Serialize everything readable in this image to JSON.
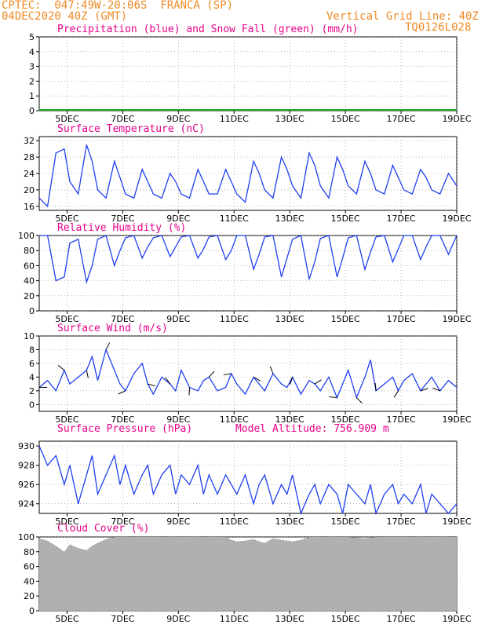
{
  "header": {
    "line1_left": "CPTEC:  047:49W-20:06S  FRANCA (SP)",
    "line2_left": "04DEC2020 40Z (GMT)",
    "line2_right": "Vertical Grid Line: 40Z",
    "line3_right": "TQ0126L028"
  },
  "colors": {
    "series": "#1f3ff0",
    "snow": "#22aa22",
    "title": "#e8008a",
    "header": "#f08a24",
    "cloud": "#b0b0b0",
    "grid": "#888888"
  },
  "x_ticks": [
    "5DEC",
    "7DEC",
    "9DEC",
    "11DEC",
    "13DEC",
    "15DEC",
    "17DEC",
    "19DEC"
  ],
  "chart_data": [
    {
      "type": "bar",
      "title": "Precipitation (blue) and Snow Fall (green) (mm/h)",
      "ylim": [
        0,
        5
      ],
      "yticks": [
        "0",
        "1",
        "2",
        "3",
        "4",
        "5"
      ],
      "series": [
        {
          "name": "Precipitation",
          "values": [
            0,
            0,
            0,
            0,
            0,
            0,
            0,
            0,
            0,
            0,
            0,
            0,
            0,
            0,
            0,
            0,
            0,
            0,
            0,
            0,
            0,
            0,
            0,
            0,
            0,
            0,
            0,
            0,
            0,
            0,
            0,
            0,
            0,
            0,
            0,
            0,
            0,
            0,
            0,
            0,
            0,
            0,
            0,
            0,
            0,
            0,
            0,
            0,
            0,
            0,
            0,
            0,
            0,
            0,
            0,
            0,
            0,
            0,
            0,
            0,
            0,
            0,
            0,
            0,
            0,
            0,
            0,
            0,
            0,
            0,
            0,
            0,
            0,
            0,
            0,
            0,
            0,
            0,
            0,
            0,
            0,
            0,
            0,
            0,
            0,
            0,
            0,
            0,
            0,
            0,
            0,
            0,
            0,
            0,
            0,
            0,
            0,
            0,
            0,
            0,
            0,
            0,
            0,
            0,
            0,
            0,
            0,
            0,
            0,
            0,
            0,
            0,
            0,
            0,
            0,
            0,
            0,
            0,
            0,
            0,
            0,
            0,
            0,
            0,
            0,
            0,
            0,
            0,
            0,
            0,
            0,
            0,
            0,
            0,
            0,
            0,
            0,
            0,
            0,
            0,
            0,
            0,
            0,
            0,
            0,
            0,
            0,
            0,
            0,
            0,
            0,
            0,
            0,
            0,
            0,
            0,
            0,
            0,
            0,
            0,
            0,
            0,
            0,
            0,
            0,
            0,
            0,
            0,
            0,
            0,
            0,
            0,
            0,
            0,
            0,
            0,
            0,
            0,
            0,
            0,
            0,
            0,
            0,
            0,
            0,
            0,
            0,
            0,
            0,
            0,
            0,
            0,
            0,
            0,
            0,
            0,
            0,
            0,
            0,
            0,
            0,
            0,
            0,
            0,
            0,
            0,
            0,
            0,
            0,
            0,
            0,
            0,
            0,
            0,
            0,
            0,
            0,
            0,
            0,
            0,
            0,
            0,
            0,
            0,
            0,
            0,
            0,
            0,
            0,
            0,
            0,
            0,
            0,
            0,
            0,
            0,
            0,
            0,
            0,
            0,
            0,
            0,
            0,
            0,
            0,
            0,
            0,
            0,
            0,
            0,
            0,
            0,
            0,
            0,
            0,
            0,
            0,
            0,
            0,
            0,
            0,
            0,
            0,
            0,
            0,
            0,
            0,
            0,
            0,
            0,
            0,
            0,
            0,
            0,
            0,
            0,
            0,
            0,
            0,
            0,
            0,
            0,
            0,
            0,
            0,
            0,
            0,
            0,
            0,
            0,
            0,
            0,
            0,
            0,
            0,
            0,
            0,
            0,
            0,
            0,
            0,
            0,
            0,
            0,
            0,
            0,
            0,
            0,
            0,
            0,
            0,
            0,
            0,
            0,
            0,
            0,
            0,
            0,
            0,
            0,
            0,
            0,
            0,
            0,
            0,
            0,
            0,
            0,
            0,
            0,
            0,
            0,
            0,
            0,
            0,
            0,
            0,
            0,
            0,
            0,
            0,
            0,
            0,
            0,
            0,
            0,
            0,
            0,
            0,
            0,
            0,
            0,
            0,
            0,
            0,
            0,
            0,
            0,
            0,
            0,
            0,
            0,
            0,
            0,
            0,
            0,
            0,
            0,
            0,
            0,
            0,
            0,
            0,
            0,
            0,
            0
          ]
        },
        {
          "name": "Snow Fall",
          "values": []
        }
      ]
    },
    {
      "type": "line",
      "title": "Surface Temperature (nC)",
      "ylim": [
        15,
        33
      ],
      "yticks": [
        "16",
        "20",
        "24",
        "28",
        "32"
      ],
      "series": [
        {
          "name": "Temperature",
          "x": [
            4.0,
            4.3,
            4.6,
            4.9,
            5.1,
            5.4,
            5.7,
            5.9,
            6.1,
            6.4,
            6.7,
            6.9,
            7.1,
            7.4,
            7.7,
            7.9,
            8.1,
            8.4,
            8.7,
            8.9,
            9.1,
            9.4,
            9.7,
            9.9,
            10.1,
            10.4,
            10.7,
            10.9,
            11.1,
            11.4,
            11.7,
            11.9,
            12.1,
            12.4,
            12.7,
            12.9,
            13.1,
            13.4,
            13.7,
            13.9,
            14.1,
            14.4,
            14.7,
            14.9,
            15.1,
            15.4,
            15.7,
            15.9,
            16.1,
            16.4,
            16.7,
            16.9,
            17.1,
            17.4,
            17.7,
            17.9,
            18.1,
            18.4,
            18.7,
            19.0
          ],
          "y": [
            18,
            16,
            29,
            30,
            22,
            19,
            31,
            27,
            20,
            18,
            27,
            23,
            19,
            18,
            25,
            22,
            19,
            18,
            24,
            22,
            19,
            18,
            25,
            22,
            19,
            19,
            25,
            22,
            19,
            17,
            27,
            24,
            20,
            18,
            28,
            25,
            21,
            18,
            29,
            26,
            21,
            18,
            28,
            25,
            21,
            19,
            27,
            24,
            20,
            19,
            26,
            23,
            20,
            19,
            25,
            23,
            20,
            19,
            24,
            21
          ]
        }
      ]
    },
    {
      "type": "line",
      "title": "Relative Humidity (%)",
      "ylim": [
        0,
        100
      ],
      "yticks": [
        "0",
        "20",
        "40",
        "60",
        "80",
        "100"
      ],
      "series": [
        {
          "name": "Relative Humidity",
          "x": [
            4.0,
            4.3,
            4.6,
            4.9,
            5.1,
            5.4,
            5.7,
            5.9,
            6.1,
            6.4,
            6.7,
            6.9,
            7.1,
            7.4,
            7.7,
            7.9,
            8.1,
            8.4,
            8.7,
            8.9,
            9.1,
            9.4,
            9.7,
            9.9,
            10.1,
            10.4,
            10.7,
            10.9,
            11.1,
            11.4,
            11.7,
            11.9,
            12.1,
            12.4,
            12.7,
            12.9,
            13.1,
            13.4,
            13.7,
            13.9,
            14.1,
            14.4,
            14.7,
            14.9,
            15.1,
            15.4,
            15.7,
            15.9,
            16.1,
            16.4,
            16.7,
            16.9,
            17.1,
            17.4,
            17.7,
            17.9,
            18.1,
            18.4,
            18.7,
            19.0
          ],
          "y": [
            100,
            100,
            40,
            45,
            90,
            95,
            38,
            60,
            95,
            100,
            60,
            80,
            97,
            100,
            70,
            85,
            97,
            100,
            72,
            85,
            98,
            100,
            70,
            82,
            98,
            100,
            68,
            80,
            100,
            100,
            55,
            75,
            98,
            100,
            45,
            70,
            95,
            100,
            42,
            65,
            96,
            100,
            45,
            70,
            97,
            100,
            55,
            78,
            98,
            100,
            65,
            82,
            100,
            100,
            68,
            85,
            100,
            100,
            75,
            100
          ]
        }
      ]
    },
    {
      "type": "line",
      "title": "Surface Wind (m/s)",
      "ylim": [
        -1,
        10
      ],
      "yticks": [
        "0",
        "2",
        "4",
        "6",
        "8",
        "10"
      ],
      "series": [
        {
          "name": "Wind Speed",
          "x": [
            4.0,
            4.3,
            4.6,
            4.9,
            5.1,
            5.4,
            5.7,
            5.9,
            6.1,
            6.4,
            6.7,
            6.9,
            7.1,
            7.4,
            7.7,
            7.9,
            8.1,
            8.4,
            8.7,
            8.9,
            9.1,
            9.4,
            9.7,
            9.9,
            10.1,
            10.4,
            10.7,
            10.9,
            11.1,
            11.4,
            11.7,
            11.9,
            12.1,
            12.4,
            12.7,
            12.9,
            13.1,
            13.4,
            13.7,
            13.9,
            14.1,
            14.4,
            14.7,
            14.9,
            15.1,
            15.4,
            15.7,
            15.9,
            16.1,
            16.4,
            16.7,
            16.9,
            17.1,
            17.4,
            17.7,
            17.9,
            18.1,
            18.4,
            18.7,
            19.0
          ],
          "y": [
            2.5,
            3.5,
            2,
            5,
            3,
            4,
            5,
            7,
            3.5,
            8,
            5,
            3,
            2,
            4.5,
            6,
            3,
            1.5,
            4,
            3,
            2,
            5,
            2.5,
            2,
            3.5,
            4,
            2,
            2.5,
            4.5,
            3,
            1.5,
            4,
            3,
            2,
            4.5,
            3,
            2.5,
            4,
            1.5,
            3.5,
            3,
            2,
            4,
            1,
            3,
            5,
            1,
            4,
            6.5,
            2,
            3,
            4,
            2,
            3.5,
            4.5,
            2,
            3,
            4,
            2,
            3.5,
            2.5
          ]
        }
      ]
    },
    {
      "type": "line",
      "title": "Surface Pressure (hPa)",
      "ylim": [
        923,
        930.5
      ],
      "yticks": [
        "924",
        "926",
        "928",
        "930"
      ],
      "series": [
        {
          "name": "Pressure",
          "x": [
            4.0,
            4.3,
            4.6,
            4.9,
            5.1,
            5.4,
            5.7,
            5.9,
            6.1,
            6.4,
            6.7,
            6.9,
            7.1,
            7.4,
            7.7,
            7.9,
            8.1,
            8.4,
            8.7,
            8.9,
            9.1,
            9.4,
            9.7,
            9.9,
            10.1,
            10.4,
            10.7,
            10.9,
            11.1,
            11.4,
            11.7,
            11.9,
            12.1,
            12.4,
            12.7,
            12.9,
            13.1,
            13.4,
            13.7,
            13.9,
            14.1,
            14.4,
            14.7,
            14.9,
            15.1,
            15.4,
            15.7,
            15.9,
            16.1,
            16.4,
            16.7,
            16.9,
            17.1,
            17.4,
            17.7,
            17.9,
            18.1,
            18.4,
            18.7,
            19.0
          ],
          "y": [
            930,
            928,
            929,
            926,
            928,
            924,
            927,
            929,
            925,
            927,
            929,
            926,
            928,
            925,
            927,
            928,
            925,
            927,
            928,
            925,
            927,
            926,
            928,
            925,
            927,
            925,
            927,
            926,
            925,
            927,
            924,
            926,
            927,
            924,
            926,
            925,
            927,
            923,
            925,
            926,
            924,
            926,
            925,
            923,
            926,
            925,
            924,
            926,
            923,
            925,
            926,
            924,
            925,
            924,
            926,
            923,
            925,
            924,
            923,
            924
          ]
        }
      ]
    },
    {
      "type": "area",
      "title": "Cloud Cover (%)",
      "ylim": [
        0,
        100
      ],
      "yticks": [
        "0",
        "20",
        "40",
        "60",
        "80",
        "100"
      ],
      "series": [
        {
          "name": "Cloud Cover",
          "x": [
            4.0,
            4.3,
            4.6,
            4.9,
            5.1,
            5.4,
            5.7,
            5.9,
            6.1,
            6.4,
            6.7,
            6.9,
            7.1,
            7.4,
            7.7,
            7.9,
            8.1,
            8.4,
            8.7,
            8.9,
            9.1,
            9.4,
            9.7,
            9.9,
            10.1,
            10.4,
            10.7,
            10.9,
            11.1,
            11.4,
            11.7,
            11.9,
            12.1,
            12.4,
            12.7,
            12.9,
            13.1,
            13.4,
            13.7,
            13.9,
            14.1,
            14.4,
            14.7,
            14.9,
            15.1,
            15.4,
            15.7,
            15.9,
            16.1,
            16.4,
            16.7,
            16.9,
            17.1,
            17.4,
            17.7,
            17.9,
            18.1,
            18.4,
            18.7,
            19.0
          ],
          "y": [
            98,
            95,
            88,
            80,
            90,
            85,
            82,
            88,
            92,
            97,
            100,
            100,
            100,
            100,
            100,
            100,
            100,
            100,
            100,
            100,
            100,
            100,
            100,
            100,
            100,
            100,
            100,
            96,
            94,
            95,
            97,
            94,
            92,
            98,
            96,
            95,
            94,
            96,
            100,
            100,
            100,
            100,
            100,
            100,
            100,
            99,
            98,
            99,
            100,
            100,
            100,
            100,
            100,
            100,
            100,
            100,
            100,
            100,
            100,
            100
          ]
        }
      ]
    }
  ],
  "pressure_note": "Model Altitude: 756.909  m"
}
